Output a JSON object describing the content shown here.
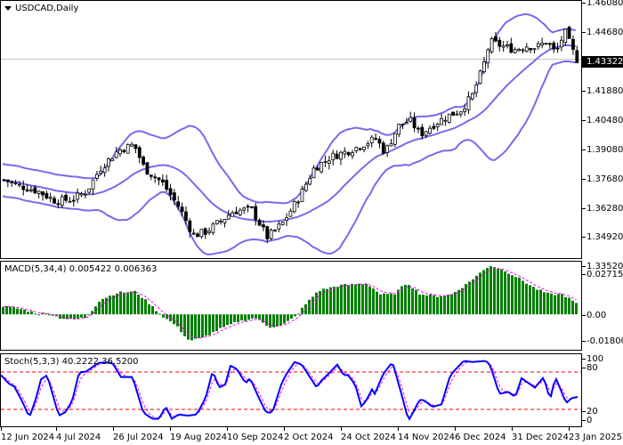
{
  "header": {
    "symbol": "USDCAD",
    "timeframe": "Daily",
    "title": "USDCAD,Daily"
  },
  "main_panel": {
    "current_price": "1.43322",
    "y_ticks": [
      "1.46080",
      "1.44680",
      "1.41880",
      "1.40480",
      "1.39080",
      "1.37680",
      "1.36280",
      "1.34920",
      "1.33520"
    ]
  },
  "macd_panel": {
    "title": "MACD(5,34,4) 0.005422 0.006363",
    "y_ticks": [
      "0.027159",
      "0.00",
      "-0.018008"
    ]
  },
  "stoch_panel": {
    "title": "Stoch(5,3,3) 40.2222 36.5200",
    "y_ticks": [
      "100",
      "80",
      "20",
      "0"
    ]
  },
  "x_axis": {
    "labels": [
      "12 Jun 2024",
      "4 Jul 2024",
      "26 Jul 2024",
      "19 Aug 2024",
      "10 Sep 2024",
      "2 Oct 2024",
      "24 Oct 2024",
      "14 Nov 2024",
      "6 Dec 2024",
      "31 Dec 2024",
      "23 Jan 2025"
    ]
  },
  "colors": {
    "bollinger": "#7b68ee",
    "macd_hist": "#008000",
    "macd_signal": "#ff00ff",
    "stoch_main": "#0000ff",
    "stoch_signal": "#ff00ff",
    "stoch_levels": "#ff0000",
    "current_price_line": "#c0c0c0"
  },
  "chart_data": [
    {
      "type": "candlestick",
      "title": "USDCAD,Daily",
      "indicator": "Bollinger Bands",
      "ylim": [
        1.3352,
        1.4608
      ],
      "x_labels": [
        "12 Jun 2024",
        "4 Jul 2024",
        "26 Jul 2024",
        "19 Aug 2024",
        "10 Sep 2024",
        "2 Oct 2024",
        "24 Oct 2024",
        "14 Nov 2024",
        "6 Dec 2024",
        "31 Dec 2024",
        "23 Jan 2025"
      ],
      "close_at_labels": [
        1.374,
        1.364,
        1.383,
        1.36,
        1.357,
        1.356,
        1.388,
        1.396,
        1.417,
        1.439,
        1.4332
      ],
      "last_price": 1.43322
    },
    {
      "type": "bar",
      "title": "MACD(5,34,4)",
      "values_latest": {
        "macd": 0.005422,
        "signal": 0.006363
      },
      "ylim": [
        -0.018008,
        0.027159
      ]
    },
    {
      "type": "line",
      "title": "Stoch(5,3,3)",
      "values_latest": {
        "main": 40.2222,
        "signal": 36.52
      },
      "levels": [
        20,
        80
      ],
      "ylim": [
        0,
        100
      ]
    }
  ]
}
